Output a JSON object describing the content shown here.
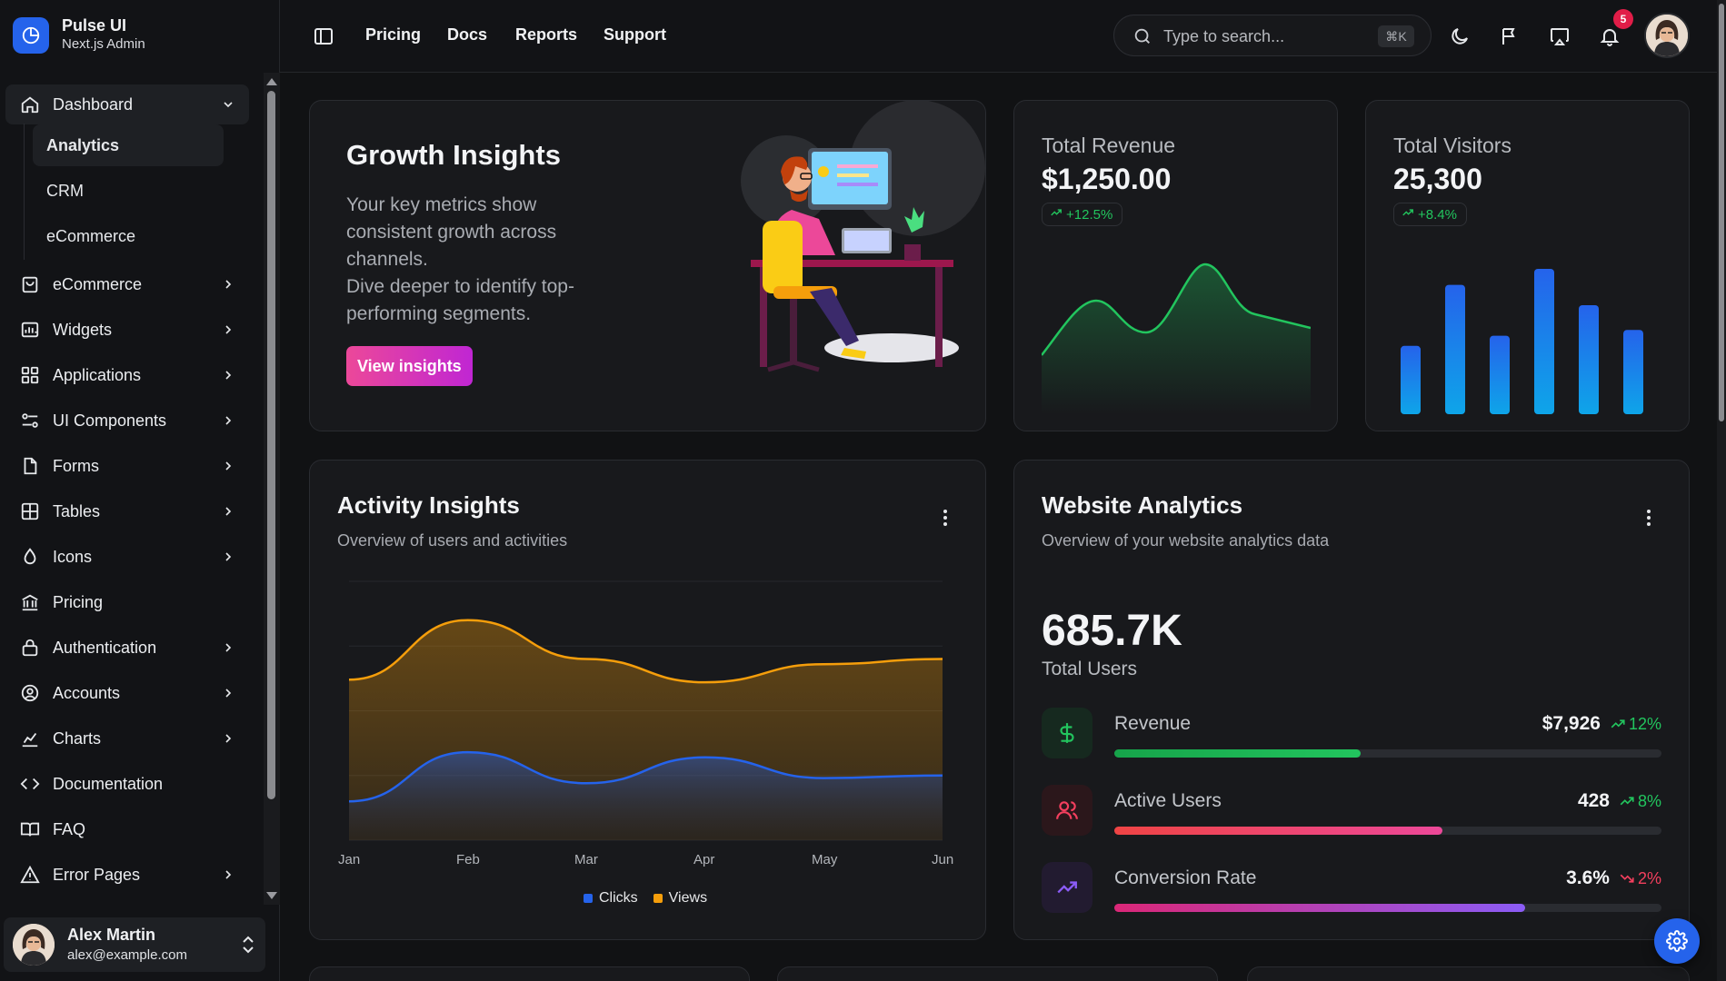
{
  "brand": {
    "name": "Pulse UI",
    "subtitle": "Next.js Admin"
  },
  "sidebar": {
    "items": [
      {
        "label": "Dashboard",
        "icon": "home-icon",
        "expanded": true
      },
      {
        "label": "eCommerce",
        "icon": "bag-icon"
      },
      {
        "label": "Widgets",
        "icon": "widgets-icon"
      },
      {
        "label": "Applications",
        "icon": "grid-icon"
      },
      {
        "label": "UI Components",
        "icon": "components-icon"
      },
      {
        "label": "Forms",
        "icon": "file-icon"
      },
      {
        "label": "Tables",
        "icon": "table-icon"
      },
      {
        "label": "Icons",
        "icon": "drop-icon"
      },
      {
        "label": "Pricing",
        "icon": "bank-icon"
      },
      {
        "label": "Authentication",
        "icon": "lock-icon"
      },
      {
        "label": "Accounts",
        "icon": "user-circle-icon"
      },
      {
        "label": "Charts",
        "icon": "chart-icon"
      },
      {
        "label": "Documentation",
        "icon": "code-icon"
      },
      {
        "label": "FAQ",
        "icon": "book-icon"
      },
      {
        "label": "Error Pages",
        "icon": "warning-icon"
      }
    ],
    "subitems": [
      {
        "label": "Analytics",
        "active": true
      },
      {
        "label": "CRM"
      },
      {
        "label": "eCommerce"
      }
    ],
    "user": {
      "name": "Alex Martin",
      "email": "alex@example.com"
    }
  },
  "topbar": {
    "links": [
      "Pricing",
      "Docs",
      "Reports",
      "Support"
    ],
    "search": {
      "placeholder": "Type to search...",
      "shortcut": "⌘K"
    },
    "notification_count": "5"
  },
  "growth": {
    "title": "Growth Insights",
    "text_1": "Your key metrics show consistent growth across channels.",
    "text_2": "Dive deeper to identify top-performing segments.",
    "button": "View insights"
  },
  "revenue": {
    "label": "Total Revenue",
    "value": "$1,250.00",
    "change": "+12.5%",
    "color": "#22c55e"
  },
  "visitors": {
    "label": "Total Visitors",
    "value": "25,300",
    "change": "+8.4%",
    "bars": [
      0.47,
      0.89,
      0.54,
      1.0,
      0.75,
      0.58
    ]
  },
  "activity": {
    "title": "Activity Insights",
    "subtitle": "Overview of users and activities",
    "legend": {
      "clicks": "Clicks",
      "views": "Views"
    },
    "colors": {
      "clicks": "#2563eb",
      "views": "#f59e0b"
    }
  },
  "chart_data": {
    "type": "area",
    "categories": [
      "Jan",
      "Feb",
      "Mar",
      "Apr",
      "May",
      "Jun"
    ],
    "series": [
      {
        "name": "Views",
        "values": [
          62,
          85,
          70,
          61,
          68,
          70
        ]
      },
      {
        "name": "Clicks",
        "values": [
          15,
          34,
          22,
          32,
          24,
          25
        ]
      }
    ],
    "ylim": [
      0,
      100
    ],
    "grid": true,
    "legend": "bottom"
  },
  "analytics": {
    "title": "Website Analytics",
    "subtitle": "Overview of your website analytics data",
    "total": "685.7K",
    "total_label": "Total Users",
    "metrics": [
      {
        "label": "Revenue",
        "value": "$7,926",
        "pct": "12%",
        "trend": "up",
        "fill": 0.45,
        "icon": "dollar-icon"
      },
      {
        "label": "Active Users",
        "value": "428",
        "pct": "8%",
        "trend": "up",
        "fill": 0.6,
        "icon": "users-icon"
      },
      {
        "label": "Conversion Rate",
        "value": "3.6%",
        "pct": "2%",
        "trend": "down",
        "fill": 0.75,
        "icon": "trend-icon"
      }
    ]
  }
}
